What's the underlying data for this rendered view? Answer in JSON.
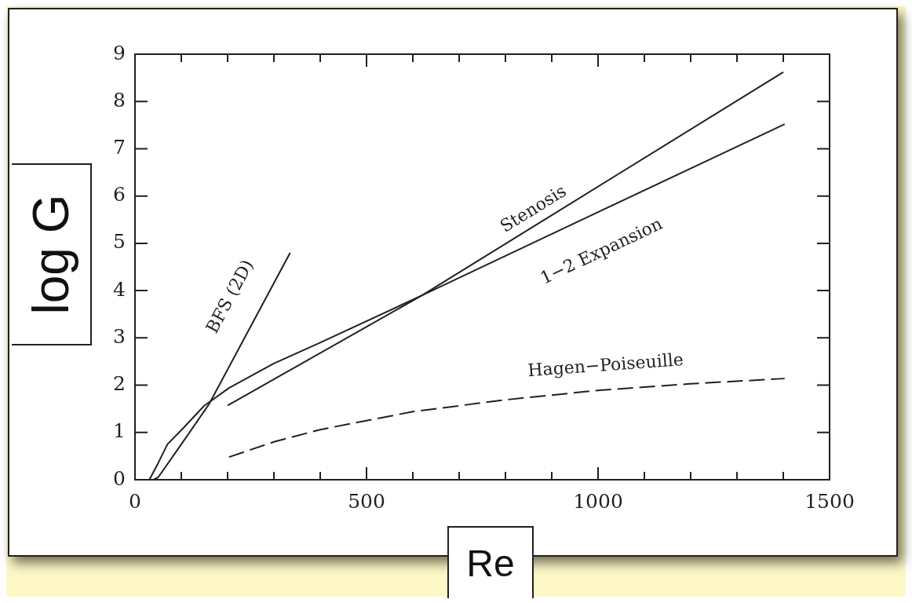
{
  "chart_data": {
    "type": "line",
    "xlabel": "Re",
    "ylabel": "log G",
    "series": [
      {
        "name": "BFS (2D)",
        "color": "#231f20",
        "x": [
          40,
          50,
          100,
          160,
          335
        ],
        "values": [
          0,
          0.05,
          0.75,
          1.6,
          4.8
        ]
      },
      {
        "name": "Stenosis",
        "color": "#231f20",
        "x": [
          200,
          620,
          1400
        ],
        "values": [
          1.57,
          3.9,
          8.62
        ]
      },
      {
        "name": "1−2 Expansion",
        "color": "#231f20",
        "x": [
          31,
          50,
          70,
          105,
          149,
          203,
          300,
          400,
          620,
          1000,
          1403
        ],
        "values": [
          0,
          0.35,
          0.75,
          1.1,
          1.56,
          1.94,
          2.46,
          2.9,
          3.9,
          5.66,
          7.52
        ]
      },
      {
        "name": "Hagen−Poiseuille",
        "color": "#231f20",
        "line_style": "dashed",
        "x": [
          203,
          300,
          400,
          600,
          800,
          1000,
          1200,
          1403
        ],
        "values": [
          0.48,
          0.8,
          1.06,
          1.44,
          1.69,
          1.89,
          2.03,
          2.14
        ]
      }
    ],
    "xlim": [
      0,
      1500
    ],
    "xticks": [
      0,
      {
        "value": 100,
        "label": null
      },
      {
        "value": 200,
        "label": null
      },
      {
        "value": 300,
        "label": null
      },
      {
        "value": 400,
        "label": null
      },
      500,
      {
        "value": 600,
        "label": null
      },
      {
        "value": 700,
        "label": null
      },
      {
        "value": 800,
        "label": null
      },
      {
        "value": 900,
        "label": null
      },
      1000,
      {
        "value": 1100,
        "label": null
      },
      {
        "value": 1200,
        "label": null
      },
      {
        "value": 1300,
        "label": null
      },
      {
        "value": 1400,
        "label": null
      },
      1500
    ],
    "ylim": [
      0,
      9
    ],
    "yticks": [
      0,
      1,
      2,
      3,
      4,
      5,
      6,
      7,
      8,
      9
    ],
    "line_style": "solid",
    "marker": "none",
    "grid": false,
    "legend": false
  }
}
